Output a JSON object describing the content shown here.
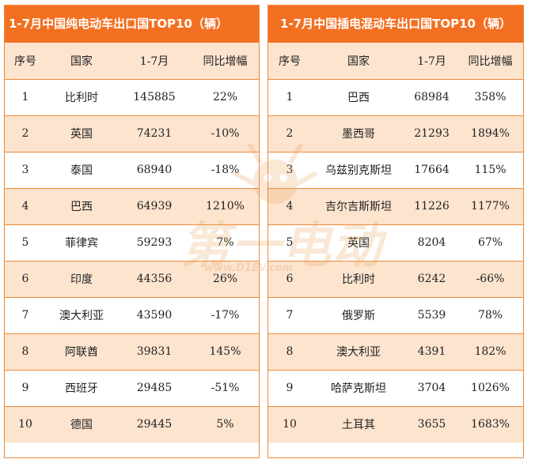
{
  "left": {
    "title": "1-7月中国纯电动车出口国TOP10（辆）",
    "headers": [
      "序号",
      "国家",
      "1-7月",
      "同比增幅"
    ],
    "rows": [
      [
        "1",
        "比利时",
        "145885",
        "22%"
      ],
      [
        "2",
        "英国",
        "74231",
        "-10%"
      ],
      [
        "3",
        "泰国",
        "68940",
        "-18%"
      ],
      [
        "4",
        "巴西",
        "64939",
        "1210%"
      ],
      [
        "5",
        "菲律宾",
        "59293",
        "7%"
      ],
      [
        "6",
        "印度",
        "44356",
        "26%"
      ],
      [
        "7",
        "澳大利亚",
        "43590",
        "-17%"
      ],
      [
        "8",
        "阿联酋",
        "39831",
        "145%"
      ],
      [
        "9",
        "西班牙",
        "29485",
        "-51%"
      ],
      [
        "10",
        "德国",
        "29445",
        "5%"
      ]
    ]
  },
  "right": {
    "title": "1-7月中国插电混动车出口国TOP10（辆）",
    "headers": [
      "序号",
      "国家",
      "1-7月",
      "同比增幅"
    ],
    "rows": [
      [
        "1",
        "巴西",
        "68984",
        "358%"
      ],
      [
        "2",
        "墨西哥",
        "21293",
        "1894%"
      ],
      [
        "3",
        "乌兹别克斯坦",
        "17664",
        "115%"
      ],
      [
        "4",
        "吉尔吉斯斯坦",
        "11226",
        "1177%"
      ],
      [
        "5",
        "英国",
        "8204",
        "67%"
      ],
      [
        "6",
        "比利时",
        "6242",
        "-66%"
      ],
      [
        "7",
        "俄罗斯",
        "5539",
        "78%"
      ],
      [
        "8",
        "澳大利亚",
        "4391",
        "182%"
      ],
      [
        "9",
        "哈萨克斯坦",
        "3704",
        "1026%"
      ],
      [
        "10",
        "土耳其",
        "3655",
        "1683%"
      ]
    ]
  },
  "watermark": {
    "text": "第一电动",
    "url": "www.D1EV.com",
    "icon": "mascot-icon",
    "color": "#e79a4a"
  }
}
